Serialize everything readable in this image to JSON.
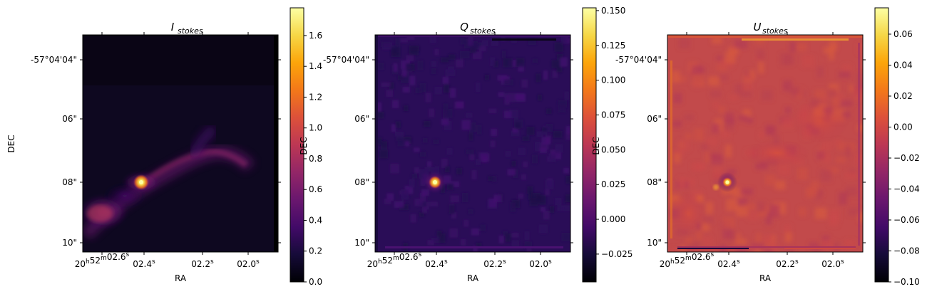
{
  "chart_data": [
    {
      "type": "heatmap",
      "title_main": "I",
      "title_sub": "stokes",
      "xlabel": "RA",
      "ylabel": "DEC",
      "x_ticks": [
        {
          "hms": "20h52m02.6s",
          "label_prefix": "20",
          "label_parts": [
            [
              "h",
              "52"
            ],
            [
              "m",
              "02.6"
            ],
            [
              "s",
              ""
            ]
          ]
        },
        {
          "hms": "02.4s",
          "label_parts": [
            [
              "",
              "02.4"
            ],
            [
              "s",
              ""
            ]
          ]
        },
        {
          "hms": "02.2s",
          "label_parts": [
            [
              "",
              "02.2"
            ],
            [
              "s",
              ""
            ]
          ]
        },
        {
          "hms": "02.0s",
          "label_parts": [
            [
              "",
              "02.0"
            ],
            [
              "s",
              ""
            ]
          ]
        }
      ],
      "y_ticks": [
        "-57°04'04\"",
        "06\"",
        "08\"",
        "10\""
      ],
      "colormap": "inferno",
      "colorbar": {
        "min": 0.0,
        "max": 1.78,
        "ticks": [
          0.0,
          0.2,
          0.4,
          0.6,
          0.8,
          1.0,
          1.2,
          1.4,
          1.6
        ],
        "tick_labels": [
          "0.0",
          "0.2",
          "0.4",
          "0.6",
          "0.8",
          "1.0",
          "1.2",
          "1.4",
          "1.6"
        ]
      },
      "features": "bright compact source near RA 02.45s, DEC 08\" with diffuse filamentary emission extending to the east and southwest"
    },
    {
      "type": "heatmap",
      "title_main": "Q",
      "title_sub": "stokes",
      "xlabel": "RA",
      "ylabel": "DEC",
      "x_ticks": [
        {
          "hms": "20h52m02.6s"
        },
        {
          "hms": "02.4s"
        },
        {
          "hms": "02.2s"
        },
        {
          "hms": "02.0s"
        }
      ],
      "y_ticks": [
        "-57°04'04\"",
        "06\"",
        "08\"",
        "10\""
      ],
      "colormap": "inferno",
      "colorbar": {
        "min": -0.045,
        "max": 0.152,
        "ticks": [
          -0.025,
          0.0,
          0.025,
          0.05,
          0.075,
          0.1,
          0.125,
          0.15
        ],
        "tick_labels": [
          "−0.025",
          "0.000",
          "0.025",
          "0.050",
          "0.075",
          "0.100",
          "0.125",
          "0.150"
        ]
      },
      "features": "compact polarized source near RA 02.45s, DEC 08\" on a faint noisy background"
    },
    {
      "type": "heatmap",
      "title_main": "U",
      "title_sub": "stokes",
      "xlabel": "RA",
      "ylabel": "DEC",
      "x_ticks": [
        {
          "hms": "20h52m02.6s"
        },
        {
          "hms": "02.4s"
        },
        {
          "hms": "02.2s"
        },
        {
          "hms": "02.0s"
        }
      ],
      "y_ticks": [
        "-57°04'04\"",
        "06\"",
        "08\"",
        "10\""
      ],
      "colormap": "inferno",
      "colorbar": {
        "min": -0.1,
        "max": 0.077,
        "ticks": [
          -0.1,
          -0.08,
          -0.06,
          -0.04,
          -0.02,
          0.0,
          0.02,
          0.04,
          0.06
        ],
        "tick_labels": [
          "−0.10",
          "−0.08",
          "−0.06",
          "−0.04",
          "−0.02",
          "0.00",
          "0.02",
          "0.04",
          "0.06"
        ]
      },
      "features": "mostly uniform background near 0.00 with a compact source near RA 02.45s, DEC 08\""
    }
  ]
}
